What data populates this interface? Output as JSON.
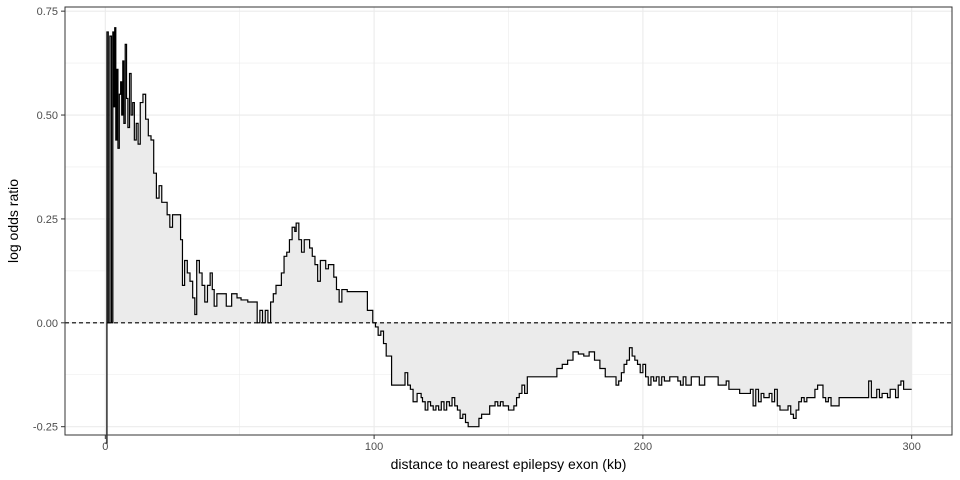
{
  "chart_data": {
    "type": "line",
    "xlabel": "distance to nearest epilepsy exon (kb)",
    "ylabel": "log odds ratio",
    "xlim": [
      -15,
      315
    ],
    "ylim": [
      -0.27,
      0.76
    ],
    "x_ticks": [
      0,
      100,
      200,
      300
    ],
    "x_tick_labels": [
      "0",
      "100",
      "200",
      "300"
    ],
    "y_ticks": [
      -0.25,
      0.0,
      0.25,
      0.5,
      0.75
    ],
    "y_tick_labels": [
      "-0.25",
      "0.00",
      "0.25",
      "0.50",
      "0.75"
    ],
    "grid": true,
    "reference_line": {
      "y": 0,
      "style": "dashed"
    },
    "fill_to_zero": true,
    "colors": {
      "line": "#000000",
      "fill": "#ebebeb",
      "grid": "#ebebeb",
      "panel_border": "#333333"
    },
    "series": [
      {
        "points": [
          [
            0,
            -0.29
          ],
          [
            0.6,
            0.7
          ],
          [
            1.1,
            0.0
          ],
          [
            1.7,
            0.69
          ],
          [
            2.3,
            0.0
          ],
          [
            2.8,
            0.7
          ],
          [
            3.2,
            0.52
          ],
          [
            3.5,
            0.71
          ],
          [
            3.9,
            0.44
          ],
          [
            4.3,
            0.61
          ],
          [
            4.7,
            0.42
          ],
          [
            5.2,
            0.55
          ],
          [
            5.7,
            0.58
          ],
          [
            6.1,
            0.5
          ],
          [
            6.5,
            0.63
          ],
          [
            6.9,
            0.48
          ],
          [
            7.4,
            0.67
          ],
          [
            7.9,
            0.54
          ],
          [
            8.4,
            0.47
          ],
          [
            9.0,
            0.6
          ],
          [
            9.6,
            0.5
          ],
          [
            10.2,
            0.53
          ],
          [
            10.8,
            0.44
          ],
          [
            11.5,
            0.48
          ],
          [
            12.2,
            0.43
          ],
          [
            13.0,
            0.53
          ],
          [
            14.0,
            0.55
          ],
          [
            15.0,
            0.49
          ],
          [
            16.0,
            0.45
          ],
          [
            17.0,
            0.44
          ],
          [
            18.0,
            0.36
          ],
          [
            19.0,
            0.3
          ],
          [
            20.0,
            0.33
          ],
          [
            21.0,
            0.29
          ],
          [
            22.0,
            0.29
          ],
          [
            23.0,
            0.26
          ],
          [
            24.0,
            0.23
          ],
          [
            25.0,
            0.26
          ],
          [
            26.0,
            0.26
          ],
          [
            27.0,
            0.26
          ],
          [
            28.0,
            0.2
          ],
          [
            28.7,
            0.09
          ],
          [
            29.5,
            0.15
          ],
          [
            30.5,
            0.12
          ],
          [
            31.5,
            0.1
          ],
          [
            32.5,
            0.06
          ],
          [
            33.3,
            0.02
          ],
          [
            34.0,
            0.15
          ],
          [
            35.0,
            0.12
          ],
          [
            36.0,
            0.09
          ],
          [
            37.0,
            0.05
          ],
          [
            38.0,
            0.09
          ],
          [
            39.0,
            0.12
          ],
          [
            39.8,
            0.08
          ],
          [
            40.5,
            0.04
          ],
          [
            41.5,
            0.07
          ],
          [
            43.0,
            0.07
          ],
          [
            45.0,
            0.04
          ],
          [
            47.0,
            0.07
          ],
          [
            49.0,
            0.06
          ],
          [
            50.5,
            0.055
          ],
          [
            53.0,
            0.05
          ],
          [
            55.0,
            0.05
          ],
          [
            56.5,
            0.0
          ],
          [
            57.5,
            0.03
          ],
          [
            58.5,
            0.0
          ],
          [
            59.5,
            0.03
          ],
          [
            60.5,
            0.0
          ],
          [
            61.5,
            0.05
          ],
          [
            62.5,
            0.07
          ],
          [
            63.5,
            0.09
          ],
          [
            64.5,
            0.09
          ],
          [
            65.5,
            0.12
          ],
          [
            66.5,
            0.16
          ],
          [
            67.5,
            0.17
          ],
          [
            68.5,
            0.2
          ],
          [
            69.5,
            0.23
          ],
          [
            70.5,
            0.22
          ],
          [
            71.0,
            0.24
          ],
          [
            72.0,
            0.2
          ],
          [
            73.0,
            0.17
          ],
          [
            74.0,
            0.2
          ],
          [
            75.0,
            0.2
          ],
          [
            76.0,
            0.18
          ],
          [
            77.0,
            0.16
          ],
          [
            78.0,
            0.14
          ],
          [
            79.0,
            0.1
          ],
          [
            80.0,
            0.15
          ],
          [
            81.0,
            0.15
          ],
          [
            82.0,
            0.13
          ],
          [
            83.0,
            0.14
          ],
          [
            84.0,
            0.14
          ],
          [
            85.0,
            0.11
          ],
          [
            86.0,
            0.08
          ],
          [
            87.0,
            0.05
          ],
          [
            88.0,
            0.08
          ],
          [
            90.0,
            0.075
          ],
          [
            92.0,
            0.075
          ],
          [
            94.0,
            0.075
          ],
          [
            96.0,
            0.075
          ],
          [
            97.5,
            0.03
          ],
          [
            98.5,
            0.03
          ],
          [
            99.5,
            0.0
          ],
          [
            100.5,
            -0.01
          ],
          [
            101.5,
            -0.03
          ],
          [
            102.5,
            -0.02
          ],
          [
            103.5,
            -0.05
          ],
          [
            104.5,
            -0.08
          ],
          [
            106.5,
            -0.15
          ],
          [
            108.0,
            -0.15
          ],
          [
            110.0,
            -0.15
          ],
          [
            111.5,
            -0.12
          ],
          [
            112.5,
            -0.15
          ],
          [
            113.5,
            -0.16
          ],
          [
            114.5,
            -0.19
          ],
          [
            116.0,
            -0.17
          ],
          [
            117.5,
            -0.18
          ],
          [
            118.0,
            -0.19
          ],
          [
            119.0,
            -0.21
          ],
          [
            120.0,
            -0.19
          ],
          [
            121.0,
            -0.2
          ],
          [
            122.0,
            -0.21
          ],
          [
            123.0,
            -0.2
          ],
          [
            124.0,
            -0.21
          ],
          [
            125.0,
            -0.19
          ],
          [
            126.0,
            -0.21
          ],
          [
            127.0,
            -0.19
          ],
          [
            128.0,
            -0.2
          ],
          [
            129.0,
            -0.18
          ],
          [
            130.0,
            -0.2
          ],
          [
            131.0,
            -0.21
          ],
          [
            132.0,
            -0.23
          ],
          [
            133.0,
            -0.22
          ],
          [
            134.0,
            -0.24
          ],
          [
            135.0,
            -0.25
          ],
          [
            136.0,
            -0.25
          ],
          [
            138.0,
            -0.25
          ],
          [
            139.0,
            -0.23
          ],
          [
            140.0,
            -0.22
          ],
          [
            142.0,
            -0.22
          ],
          [
            143.0,
            -0.2
          ],
          [
            145.0,
            -0.19
          ],
          [
            146.0,
            -0.2
          ],
          [
            147.0,
            -0.19
          ],
          [
            148.0,
            -0.2
          ],
          [
            150.0,
            -0.21
          ],
          [
            152.0,
            -0.2
          ],
          [
            153.0,
            -0.18
          ],
          [
            154.0,
            -0.17
          ],
          [
            155.0,
            -0.15
          ],
          [
            156.0,
            -0.17
          ],
          [
            157.0,
            -0.13
          ],
          [
            159.0,
            -0.13
          ],
          [
            161.0,
            -0.13
          ],
          [
            163.0,
            -0.13
          ],
          [
            165.0,
            -0.13
          ],
          [
            167.0,
            -0.13
          ],
          [
            168.0,
            -0.11
          ],
          [
            170.0,
            -0.1
          ],
          [
            172.0,
            -0.09
          ],
          [
            174.0,
            -0.07
          ],
          [
            176.0,
            -0.075
          ],
          [
            178.0,
            -0.08
          ],
          [
            180.0,
            -0.07
          ],
          [
            182.0,
            -0.09
          ],
          [
            184.0,
            -0.11
          ],
          [
            186.0,
            -0.13
          ],
          [
            188.0,
            -0.13
          ],
          [
            190.0,
            -0.15
          ],
          [
            191.0,
            -0.14
          ],
          [
            192.0,
            -0.12
          ],
          [
            193.0,
            -0.1
          ],
          [
            194.0,
            -0.09
          ],
          [
            195.0,
            -0.06
          ],
          [
            196.0,
            -0.08
          ],
          [
            197.0,
            -0.09
          ],
          [
            198.0,
            -0.1
          ],
          [
            199.0,
            -0.12
          ],
          [
            200.0,
            -0.1
          ],
          [
            201.0,
            -0.13
          ],
          [
            202.0,
            -0.15
          ],
          [
            203.0,
            -0.13
          ],
          [
            204.0,
            -0.14
          ],
          [
            205.0,
            -0.13
          ],
          [
            206.0,
            -0.15
          ],
          [
            207.0,
            -0.13
          ],
          [
            208.0,
            -0.14
          ],
          [
            210.0,
            -0.13
          ],
          [
            212.0,
            -0.13
          ],
          [
            213.0,
            -0.14
          ],
          [
            214.0,
            -0.15
          ],
          [
            215.0,
            -0.13
          ],
          [
            216.0,
            -0.15
          ],
          [
            218.0,
            -0.13
          ],
          [
            220.0,
            -0.13
          ],
          [
            221.0,
            -0.15
          ],
          [
            223.0,
            -0.13
          ],
          [
            225.0,
            -0.13
          ],
          [
            227.0,
            -0.13
          ],
          [
            228.0,
            -0.15
          ],
          [
            230.0,
            -0.15
          ],
          [
            231.0,
            -0.14
          ],
          [
            232.0,
            -0.16
          ],
          [
            234.0,
            -0.16
          ],
          [
            236.0,
            -0.17
          ],
          [
            238.0,
            -0.17
          ],
          [
            240.0,
            -0.16
          ],
          [
            241.0,
            -0.2
          ],
          [
            242.0,
            -0.16
          ],
          [
            243.0,
            -0.19
          ],
          [
            244.0,
            -0.17
          ],
          [
            245.0,
            -0.18
          ],
          [
            247.0,
            -0.17
          ],
          [
            248.0,
            -0.19
          ],
          [
            249.0,
            -0.16
          ],
          [
            250.0,
            -0.2
          ],
          [
            251.0,
            -0.21
          ],
          [
            253.0,
            -0.21
          ],
          [
            254.0,
            -0.2
          ],
          [
            255.0,
            -0.22
          ],
          [
            256.0,
            -0.23
          ],
          [
            257.0,
            -0.21
          ],
          [
            258.0,
            -0.19
          ],
          [
            259.0,
            -0.18
          ],
          [
            260.0,
            -0.19
          ],
          [
            261.0,
            -0.18
          ],
          [
            263.0,
            -0.18
          ],
          [
            264.0,
            -0.16
          ],
          [
            265.0,
            -0.15
          ],
          [
            266.0,
            -0.15
          ],
          [
            267.0,
            -0.18
          ],
          [
            268.0,
            -0.19
          ],
          [
            269.0,
            -0.18
          ],
          [
            270.0,
            -0.2
          ],
          [
            272.0,
            -0.2
          ],
          [
            273.0,
            -0.18
          ],
          [
            275.0,
            -0.18
          ],
          [
            277.0,
            -0.18
          ],
          [
            279.0,
            -0.18
          ],
          [
            281.0,
            -0.18
          ],
          [
            283.0,
            -0.18
          ],
          [
            284.0,
            -0.14
          ],
          [
            285.0,
            -0.18
          ],
          [
            286.0,
            -0.18
          ],
          [
            287.0,
            -0.16
          ],
          [
            288.0,
            -0.18
          ],
          [
            289.0,
            -0.17
          ],
          [
            290.0,
            -0.17
          ],
          [
            291.0,
            -0.18
          ],
          [
            292.0,
            -0.16
          ],
          [
            293.0,
            -0.16
          ],
          [
            294.0,
            -0.18
          ],
          [
            295.0,
            -0.15
          ],
          [
            296.0,
            -0.14
          ],
          [
            297.0,
            -0.16
          ],
          [
            298.0,
            -0.16
          ],
          [
            300.0,
            -0.16
          ]
        ]
      }
    ]
  }
}
